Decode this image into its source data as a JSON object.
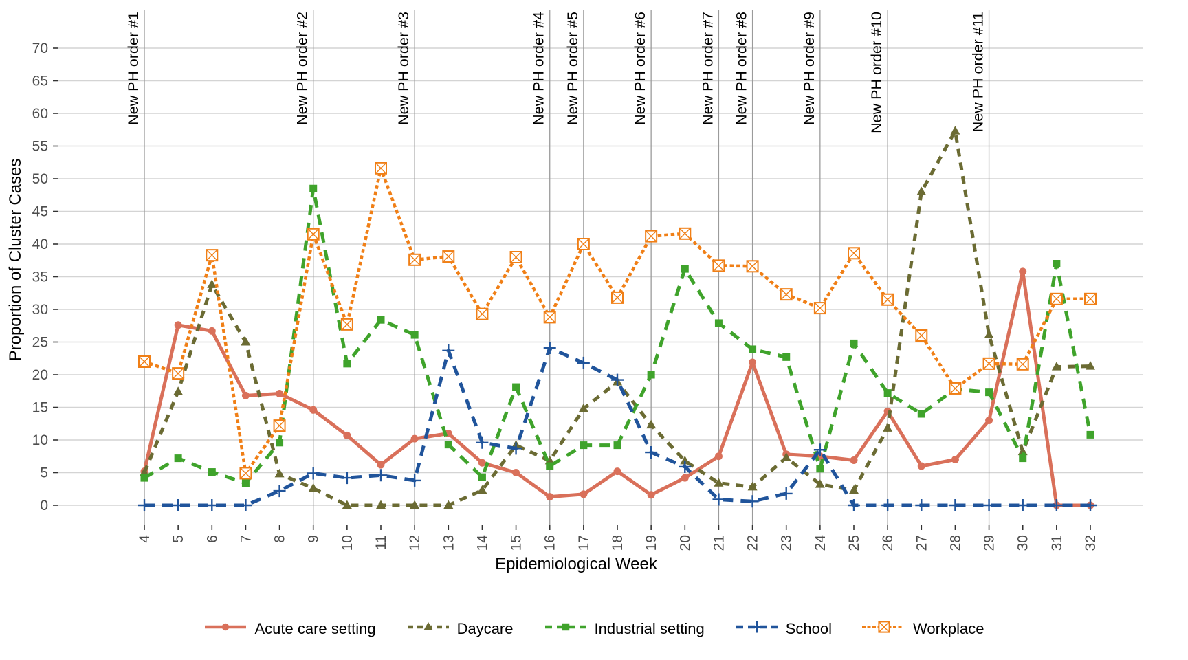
{
  "chart_data": {
    "type": "line",
    "title": "",
    "xlabel": "Epidemiological Week",
    "ylabel": "Proportion of Cluster Cases",
    "x_weeks": [
      4,
      5,
      6,
      7,
      8,
      9,
      10,
      11,
      12,
      13,
      14,
      15,
      16,
      17,
      18,
      19,
      20,
      21,
      22,
      23,
      24,
      25,
      26,
      27,
      28,
      29,
      30,
      31,
      32
    ],
    "y_ticks": [
      0,
      5,
      10,
      15,
      20,
      25,
      30,
      35,
      40,
      45,
      50,
      55,
      60,
      65,
      70
    ],
    "ylim": [
      0,
      70
    ],
    "grid": true,
    "legend_position": "bottom",
    "colors": {
      "grid": "#d4d4d4",
      "ph_line": "#9b9b9b",
      "tick": "#333333",
      "tick_label": "#4d4d4d",
      "axis_title": "#000000"
    },
    "ph_orders": [
      {
        "label": "New PH order #1",
        "week": 4
      },
      {
        "label": "New PH order #2",
        "week": 9
      },
      {
        "label": "New PH order #3",
        "week": 12
      },
      {
        "label": "New PH order #4",
        "week": 16
      },
      {
        "label": "New PH order #5",
        "week": 17
      },
      {
        "label": "New PH order #6",
        "week": 19
      },
      {
        "label": "New PH order #7",
        "week": 21
      },
      {
        "label": "New PH order #8",
        "week": 22
      },
      {
        "label": "New PH order #9",
        "week": 24
      },
      {
        "label": "New PH order #10",
        "week": 26
      },
      {
        "label": "New PH order #11",
        "week": 29
      }
    ],
    "series": [
      {
        "name": "Acute care setting",
        "color": "#d9705a",
        "marker": "circle",
        "dash": "solid",
        "values": [
          5.2,
          27.6,
          26.7,
          16.8,
          17.1,
          14.6,
          10.7,
          6.2,
          10.2,
          11.0,
          6.5,
          5.0,
          1.3,
          1.7,
          5.2,
          1.6,
          4.2,
          7.5,
          21.9,
          7.8,
          7.5,
          6.9,
          14.4,
          6.0,
          7.0,
          13.0,
          35.8,
          0,
          0
        ]
      },
      {
        "name": "Daycare",
        "color": "#6b6b33",
        "marker": "triangle",
        "dash": "dashed",
        "values": [
          5.0,
          17.4,
          33.8,
          25.0,
          4.8,
          2.6,
          0,
          0,
          0,
          0,
          2.3,
          9.2,
          6.8,
          14.8,
          18.9,
          12.3,
          6.8,
          3.4,
          2.8,
          7.3,
          3.2,
          2.3,
          11.8,
          48.0,
          57.3,
          26.1,
          8.2,
          21.2,
          21.3
        ]
      },
      {
        "name": "Industrial setting",
        "color": "#3fa32b",
        "marker": "square",
        "dash": "long-dash",
        "values": [
          4.2,
          7.2,
          5.1,
          3.4,
          9.6,
          48.5,
          21.7,
          28.4,
          26.1,
          9.3,
          4.3,
          18.1,
          6.0,
          9.2,
          9.2,
          20.0,
          36.2,
          27.9,
          23.9,
          22.7,
          5.6,
          24.8,
          17.2,
          14.0,
          17.8,
          17.3,
          7.2,
          37.0,
          10.8
        ]
      },
      {
        "name": "School",
        "color": "#20549b",
        "marker": "plus",
        "dash": "long-dash",
        "values": [
          0,
          0,
          0,
          0,
          2.2,
          4.9,
          4.2,
          4.6,
          3.8,
          23.7,
          9.6,
          8.7,
          24.1,
          21.8,
          19.2,
          8.1,
          5.9,
          0.9,
          0.6,
          1.8,
          8.5,
          0,
          0,
          0,
          0,
          0,
          0,
          0,
          0
        ]
      },
      {
        "name": "Workplace",
        "color": "#f07f16",
        "marker": "crossed-square",
        "dash": "dotted",
        "values": [
          22.0,
          20.2,
          38.3,
          4.9,
          12.2,
          41.5,
          27.7,
          51.6,
          37.6,
          38.1,
          29.3,
          38.0,
          28.8,
          40.0,
          31.8,
          41.2,
          41.6,
          36.7,
          36.6,
          32.3,
          30.2,
          38.6,
          31.5,
          26.0,
          17.9,
          21.7,
          21.6,
          31.6,
          31.6
        ]
      }
    ]
  }
}
